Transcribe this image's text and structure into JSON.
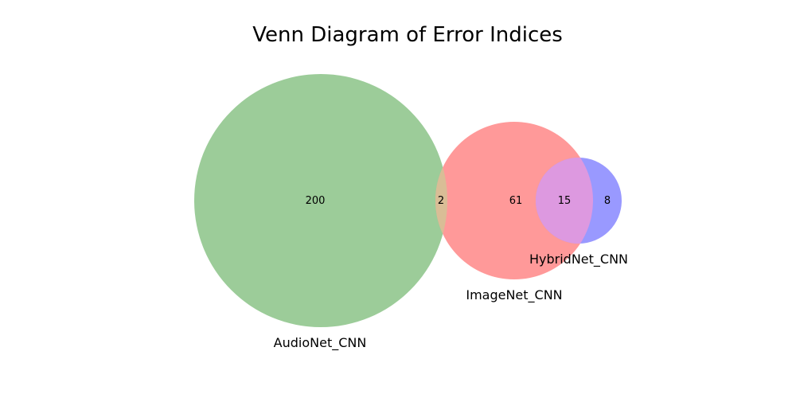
{
  "title": "Venn Diagram of Error Indices",
  "colors": {
    "audionet": "#9ccc99",
    "imagenet": "#ff9999",
    "hybridnet": "#9999ff",
    "audio_image_overlap": "#d9bd96",
    "image_hybrid_overlap": "#dd99e0"
  },
  "sets": {
    "audionet": "AudioNet_CNN",
    "imagenet": "ImageNet_CNN",
    "hybridnet": "HybridNet_CNN"
  },
  "regions": {
    "audionet_only": "200",
    "audionet_imagenet": "2",
    "imagenet_only": "61",
    "imagenet_hybridnet": "15",
    "hybridnet_only": "8"
  }
}
